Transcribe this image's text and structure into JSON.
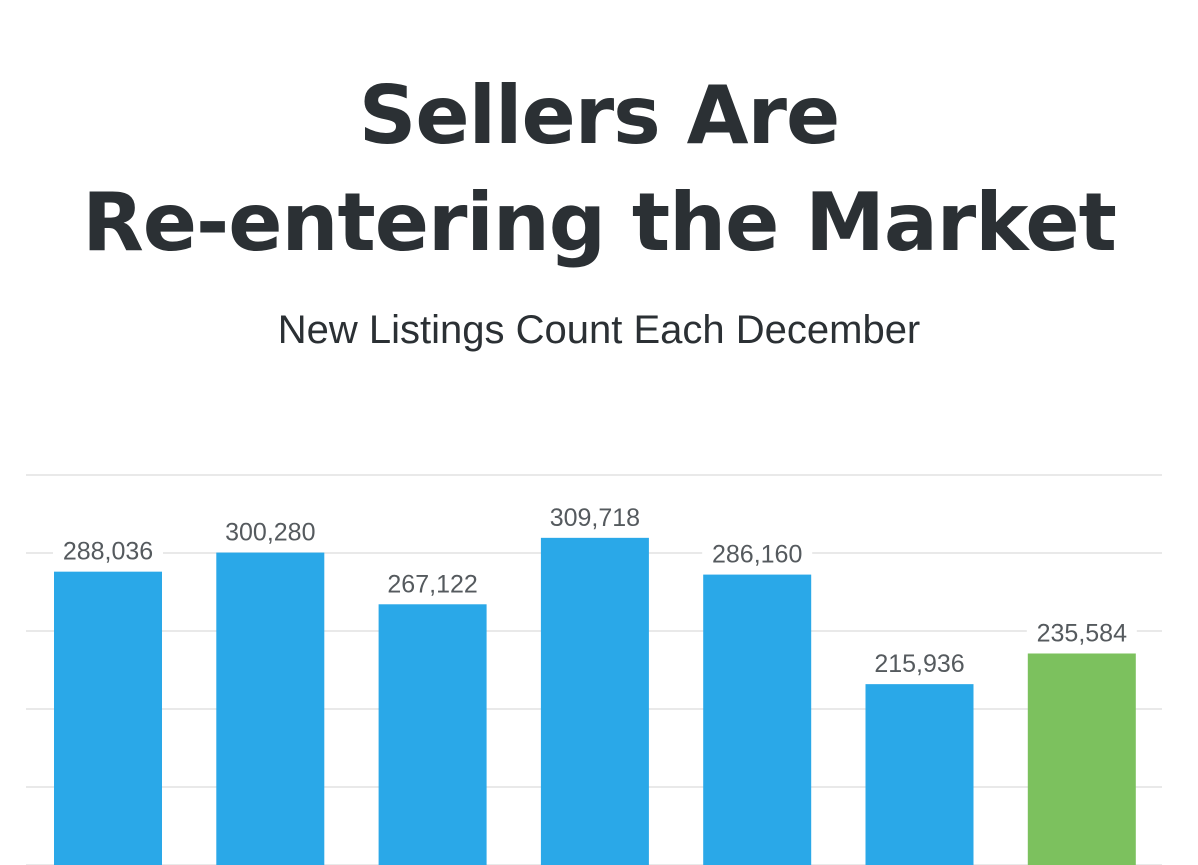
{
  "header": {
    "title_line_1": "Sellers Are",
    "title_line_2": "Re-entering the Market",
    "subtitle": "New Listings Count Each December"
  },
  "colors": {
    "bar_default": "#2aa8e8",
    "bar_highlight": "#7cc15e",
    "gridline": "#dcdcdc",
    "title_text": "#2b3034",
    "label_text": "#555a5e"
  },
  "chart_data": {
    "type": "bar",
    "title": "New Listings Count Each December",
    "xlabel": "",
    "ylabel": "",
    "ylim": [
      0,
      350000
    ],
    "grid": true,
    "legend": "none",
    "values": [
      288036,
      300280,
      267122,
      309718,
      286160,
      215936,
      235584
    ],
    "value_labels": [
      "288,036",
      "300,280",
      "267,122",
      "309,718",
      "286,160",
      "215,936",
      "235,584"
    ],
    "highlight_index": 6
  }
}
